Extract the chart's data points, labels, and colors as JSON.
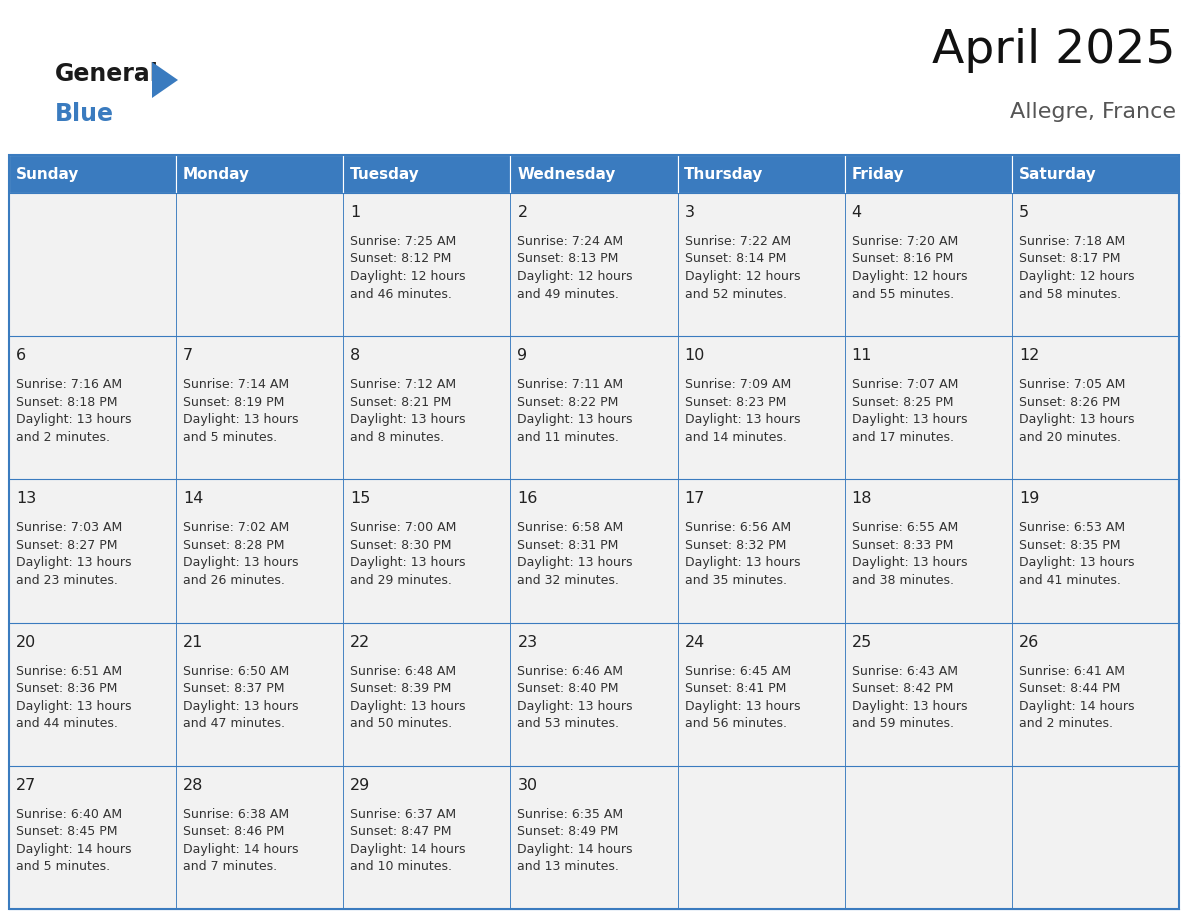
{
  "title": "April 2025",
  "subtitle": "Allegre, France",
  "header_bg": "#3a7bbf",
  "header_text_color": "#ffffff",
  "cell_bg": "#f2f2f2",
  "cell_bg_empty": "#f2f2f2",
  "border_color": "#3a7bbf",
  "text_color": "#333333",
  "day_number_color": "#222222",
  "days_of_week": [
    "Sunday",
    "Monday",
    "Tuesday",
    "Wednesday",
    "Thursday",
    "Friday",
    "Saturday"
  ],
  "logo_general_color": "#1a1a1a",
  "logo_blue_color": "#3a7bbf",
  "logo_triangle_color": "#3a7bbf",
  "weeks": [
    [
      {
        "day": "",
        "lines": []
      },
      {
        "day": "",
        "lines": []
      },
      {
        "day": "1",
        "lines": [
          "Sunrise: 7:25 AM",
          "Sunset: 8:12 PM",
          "Daylight: 12 hours",
          "and 46 minutes."
        ]
      },
      {
        "day": "2",
        "lines": [
          "Sunrise: 7:24 AM",
          "Sunset: 8:13 PM",
          "Daylight: 12 hours",
          "and 49 minutes."
        ]
      },
      {
        "day": "3",
        "lines": [
          "Sunrise: 7:22 AM",
          "Sunset: 8:14 PM",
          "Daylight: 12 hours",
          "and 52 minutes."
        ]
      },
      {
        "day": "4",
        "lines": [
          "Sunrise: 7:20 AM",
          "Sunset: 8:16 PM",
          "Daylight: 12 hours",
          "and 55 minutes."
        ]
      },
      {
        "day": "5",
        "lines": [
          "Sunrise: 7:18 AM",
          "Sunset: 8:17 PM",
          "Daylight: 12 hours",
          "and 58 minutes."
        ]
      }
    ],
    [
      {
        "day": "6",
        "lines": [
          "Sunrise: 7:16 AM",
          "Sunset: 8:18 PM",
          "Daylight: 13 hours",
          "and 2 minutes."
        ]
      },
      {
        "day": "7",
        "lines": [
          "Sunrise: 7:14 AM",
          "Sunset: 8:19 PM",
          "Daylight: 13 hours",
          "and 5 minutes."
        ]
      },
      {
        "day": "8",
        "lines": [
          "Sunrise: 7:12 AM",
          "Sunset: 8:21 PM",
          "Daylight: 13 hours",
          "and 8 minutes."
        ]
      },
      {
        "day": "9",
        "lines": [
          "Sunrise: 7:11 AM",
          "Sunset: 8:22 PM",
          "Daylight: 13 hours",
          "and 11 minutes."
        ]
      },
      {
        "day": "10",
        "lines": [
          "Sunrise: 7:09 AM",
          "Sunset: 8:23 PM",
          "Daylight: 13 hours",
          "and 14 minutes."
        ]
      },
      {
        "day": "11",
        "lines": [
          "Sunrise: 7:07 AM",
          "Sunset: 8:25 PM",
          "Daylight: 13 hours",
          "and 17 minutes."
        ]
      },
      {
        "day": "12",
        "lines": [
          "Sunrise: 7:05 AM",
          "Sunset: 8:26 PM",
          "Daylight: 13 hours",
          "and 20 minutes."
        ]
      }
    ],
    [
      {
        "day": "13",
        "lines": [
          "Sunrise: 7:03 AM",
          "Sunset: 8:27 PM",
          "Daylight: 13 hours",
          "and 23 minutes."
        ]
      },
      {
        "day": "14",
        "lines": [
          "Sunrise: 7:02 AM",
          "Sunset: 8:28 PM",
          "Daylight: 13 hours",
          "and 26 minutes."
        ]
      },
      {
        "day": "15",
        "lines": [
          "Sunrise: 7:00 AM",
          "Sunset: 8:30 PM",
          "Daylight: 13 hours",
          "and 29 minutes."
        ]
      },
      {
        "day": "16",
        "lines": [
          "Sunrise: 6:58 AM",
          "Sunset: 8:31 PM",
          "Daylight: 13 hours",
          "and 32 minutes."
        ]
      },
      {
        "day": "17",
        "lines": [
          "Sunrise: 6:56 AM",
          "Sunset: 8:32 PM",
          "Daylight: 13 hours",
          "and 35 minutes."
        ]
      },
      {
        "day": "18",
        "lines": [
          "Sunrise: 6:55 AM",
          "Sunset: 8:33 PM",
          "Daylight: 13 hours",
          "and 38 minutes."
        ]
      },
      {
        "day": "19",
        "lines": [
          "Sunrise: 6:53 AM",
          "Sunset: 8:35 PM",
          "Daylight: 13 hours",
          "and 41 minutes."
        ]
      }
    ],
    [
      {
        "day": "20",
        "lines": [
          "Sunrise: 6:51 AM",
          "Sunset: 8:36 PM",
          "Daylight: 13 hours",
          "and 44 minutes."
        ]
      },
      {
        "day": "21",
        "lines": [
          "Sunrise: 6:50 AM",
          "Sunset: 8:37 PM",
          "Daylight: 13 hours",
          "and 47 minutes."
        ]
      },
      {
        "day": "22",
        "lines": [
          "Sunrise: 6:48 AM",
          "Sunset: 8:39 PM",
          "Daylight: 13 hours",
          "and 50 minutes."
        ]
      },
      {
        "day": "23",
        "lines": [
          "Sunrise: 6:46 AM",
          "Sunset: 8:40 PM",
          "Daylight: 13 hours",
          "and 53 minutes."
        ]
      },
      {
        "day": "24",
        "lines": [
          "Sunrise: 6:45 AM",
          "Sunset: 8:41 PM",
          "Daylight: 13 hours",
          "and 56 minutes."
        ]
      },
      {
        "day": "25",
        "lines": [
          "Sunrise: 6:43 AM",
          "Sunset: 8:42 PM",
          "Daylight: 13 hours",
          "and 59 minutes."
        ]
      },
      {
        "day": "26",
        "lines": [
          "Sunrise: 6:41 AM",
          "Sunset: 8:44 PM",
          "Daylight: 14 hours",
          "and 2 minutes."
        ]
      }
    ],
    [
      {
        "day": "27",
        "lines": [
          "Sunrise: 6:40 AM",
          "Sunset: 8:45 PM",
          "Daylight: 14 hours",
          "and 5 minutes."
        ]
      },
      {
        "day": "28",
        "lines": [
          "Sunrise: 6:38 AM",
          "Sunset: 8:46 PM",
          "Daylight: 14 hours",
          "and 7 minutes."
        ]
      },
      {
        "day": "29",
        "lines": [
          "Sunrise: 6:37 AM",
          "Sunset: 8:47 PM",
          "Daylight: 14 hours",
          "and 10 minutes."
        ]
      },
      {
        "day": "30",
        "lines": [
          "Sunrise: 6:35 AM",
          "Sunset: 8:49 PM",
          "Daylight: 14 hours",
          "and 13 minutes."
        ]
      },
      {
        "day": "",
        "lines": []
      },
      {
        "day": "",
        "lines": []
      },
      {
        "day": "",
        "lines": []
      }
    ]
  ]
}
